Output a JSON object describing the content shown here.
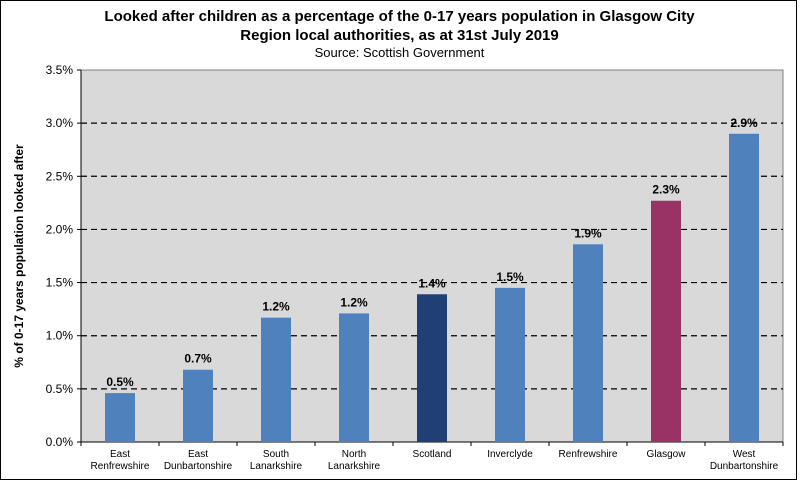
{
  "chart_data": {
    "type": "bar",
    "title_lines": [
      "Looked after children as a percentage of the 0-17 years population in Glasgow City",
      "Region local authorities, as at 31st July 2019"
    ],
    "subtitle": "Source: Scottish Government",
    "ylabel": "% of 0-17 years population looked after",
    "xlabel": "",
    "ylim": [
      0,
      3.5
    ],
    "yticks": [
      "0.0%",
      "0.5%",
      "1.0%",
      "1.5%",
      "2.0%",
      "2.5%",
      "3.0%",
      "3.5%"
    ],
    "grid": "horizontal dashed",
    "categories": [
      [
        "East",
        "Renfrewshire"
      ],
      [
        "East",
        "Dunbartonshire"
      ],
      [
        "South",
        "Lanarkshire"
      ],
      [
        "North",
        "Lanarkshire"
      ],
      [
        "Scotland"
      ],
      [
        "Inverclyde"
      ],
      [
        "Renfrewshire"
      ],
      [
        "Glasgow"
      ],
      [
        "West",
        "Dunbartonshire"
      ]
    ],
    "values": [
      0.46,
      0.68,
      1.17,
      1.21,
      1.39,
      1.45,
      1.86,
      2.27,
      2.9
    ],
    "data_labels": [
      "0.5%",
      "0.7%",
      "1.2%",
      "1.2%",
      "1.4%",
      "1.5%",
      "1.9%",
      "2.3%",
      "2.9%"
    ],
    "colors": {
      "default": "#4f81bd",
      "Scotland": "#1f3f75",
      "Glasgow": "#993366",
      "plot_background": "#d9d9d9"
    }
  }
}
